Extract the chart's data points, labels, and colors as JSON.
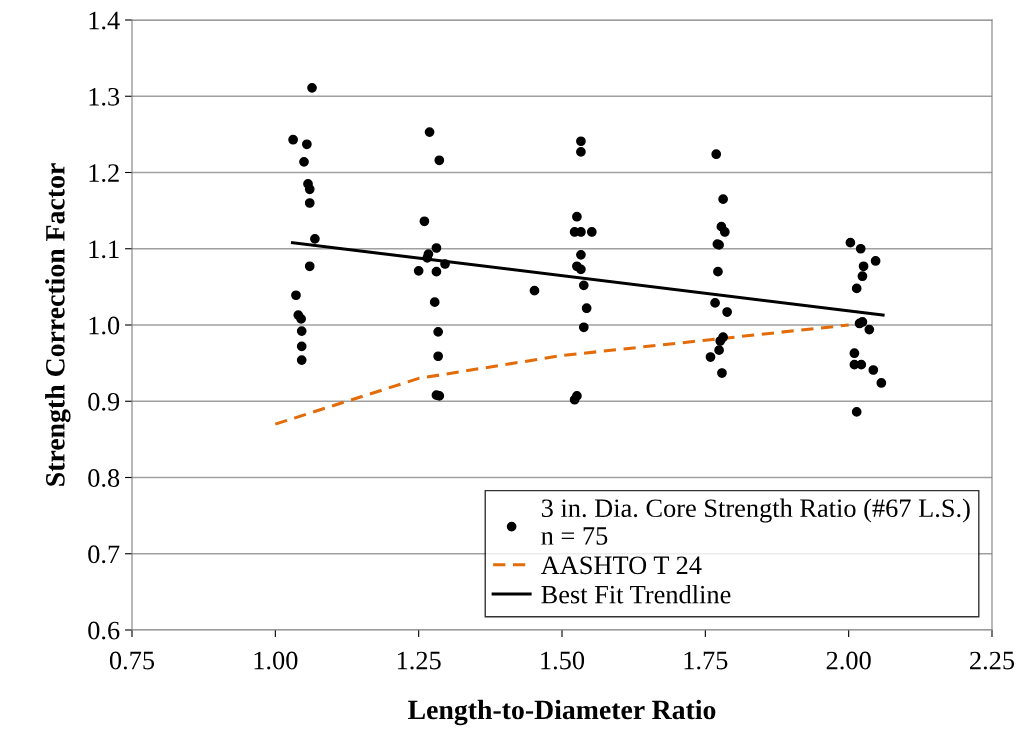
{
  "chart_data": {
    "type": "scatter",
    "xlabel": "Length-to-Diameter Ratio",
    "ylabel": "Strength Correction Factor",
    "xlim": [
      0.75,
      2.25
    ],
    "xticks": [
      {
        "value": 0.75,
        "label": "0.75"
      },
      {
        "value": 1.0,
        "label": "1.00"
      },
      {
        "value": 1.25,
        "label": "1.25"
      },
      {
        "value": 1.5,
        "label": "1.50"
      },
      {
        "value": 1.75,
        "label": "1.75"
      },
      {
        "value": 2.0,
        "label": "2.00"
      },
      {
        "value": 2.25,
        "label": "2.25"
      }
    ],
    "ylim": [
      0.6,
      1.4
    ],
    "yticks": [
      {
        "value": 0.6,
        "label": "0.6"
      },
      {
        "value": 0.7,
        "label": "0.7"
      },
      {
        "value": 0.8,
        "label": "0.8"
      },
      {
        "value": 0.9,
        "label": "0.9"
      },
      {
        "value": 1.0,
        "label": "1.0"
      },
      {
        "value": 1.1,
        "label": "1.1"
      },
      {
        "value": 1.2,
        "label": "1.2"
      },
      {
        "value": 1.3,
        "label": "1.3"
      },
      {
        "value": 1.4,
        "label": "1.4"
      }
    ],
    "grid": "y",
    "legend": "bottom right",
    "series": [
      {
        "name": "3 in. Dia. Core Strength Ratio (#67 L.S.)\nn = 75",
        "color": "#000000",
        "marker": "circle",
        "x": [
          1.031,
          1.064,
          1.055,
          1.05,
          1.057,
          1.06,
          1.06,
          1.069,
          1.06,
          1.036,
          1.04,
          1.045,
          1.046,
          1.046,
          1.046,
          1.269,
          1.286,
          1.26,
          1.281,
          1.267,
          1.265,
          1.296,
          1.25,
          1.281,
          1.278,
          1.284,
          1.284,
          1.281,
          1.286,
          1.452,
          1.533,
          1.533,
          1.526,
          1.522,
          1.533,
          1.552,
          1.533,
          1.526,
          1.533,
          1.538,
          1.543,
          1.538,
          1.526,
          1.522,
          1.769,
          1.781,
          1.778,
          1.784,
          1.771,
          1.774,
          1.772,
          1.767,
          1.788,
          1.781,
          1.776,
          1.774,
          1.759,
          1.779,
          2.003,
          2.021,
          2.047,
          2.026,
          2.024,
          2.014,
          2.019,
          2.024,
          2.036,
          2.01,
          2.01,
          2.022,
          2.043,
          2.057,
          2.014
        ],
        "values": [
          1.243,
          1.311,
          1.237,
          1.214,
          1.185,
          1.178,
          1.16,
          1.113,
          1.077,
          1.039,
          1.013,
          1.008,
          0.992,
          0.972,
          0.954,
          1.253,
          1.216,
          1.136,
          1.101,
          1.093,
          1.088,
          1.08,
          1.071,
          1.07,
          1.03,
          0.991,
          0.959,
          0.908,
          0.907,
          1.045,
          1.241,
          1.227,
          1.142,
          1.122,
          1.122,
          1.122,
          1.092,
          1.077,
          1.073,
          1.052,
          1.022,
          0.997,
          0.907,
          0.902,
          1.224,
          1.165,
          1.129,
          1.122,
          1.106,
          1.105,
          1.07,
          1.029,
          1.017,
          0.984,
          0.979,
          0.967,
          0.958,
          0.937,
          1.108,
          1.1,
          1.084,
          1.077,
          1.064,
          1.048,
          1.002,
          1.004,
          0.994,
          0.963,
          0.948,
          0.948,
          0.941,
          0.924,
          0.886
        ]
      },
      {
        "type": "line",
        "name": "AASHTO T 24",
        "color": "#e36c09",
        "line_style": "dashed",
        "x": [
          1.0,
          1.25,
          1.5,
          1.75,
          2.0
        ],
        "values": [
          0.87,
          0.93,
          0.96,
          0.98,
          1.0
        ]
      },
      {
        "type": "line",
        "name": "Best Fit Trendline",
        "color": "#000000",
        "line_style": "solid",
        "x": [
          1.03,
          2.06
        ],
        "values": [
          1.108,
          1.013
        ]
      }
    ]
  }
}
